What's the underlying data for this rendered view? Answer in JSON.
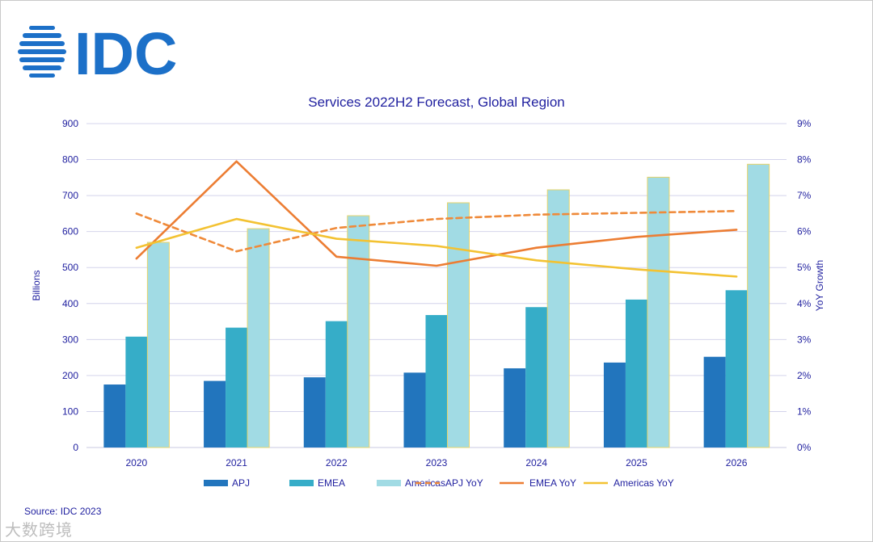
{
  "logo": {
    "text": "IDC",
    "color": "#1c70c8"
  },
  "source": "Source: IDC 2023",
  "watermark": "大数跨境",
  "chart_data": {
    "type": "bar",
    "title": "Services 2022H2 Forecast, Global Region",
    "ylabel": "Billions",
    "y2label": "YoY Growth",
    "ylim": [
      0,
      900
    ],
    "y2lim": [
      0,
      9
    ],
    "yticks": [
      "0",
      "100",
      "200",
      "300",
      "400",
      "500",
      "600",
      "700",
      "800",
      "900"
    ],
    "y2ticks": [
      "0%",
      "1%",
      "2%",
      "3%",
      "4%",
      "5%",
      "6%",
      "7%",
      "8%",
      "9%"
    ],
    "categories": [
      "2020",
      "2021",
      "2022",
      "2023",
      "2024",
      "2025",
      "2026"
    ],
    "series": [
      {
        "name": "APJ",
        "kind": "bar",
        "color": "#2275bd",
        "values": [
          175,
          185,
          195,
          208,
          220,
          236,
          252
        ]
      },
      {
        "name": "EMEA",
        "kind": "bar",
        "color": "#36adc8",
        "values": [
          308,
          333,
          351,
          368,
          390,
          411,
          437
        ]
      },
      {
        "name": "Americas",
        "kind": "bar",
        "color": "#a1dbe4",
        "values": [
          570,
          608,
          644,
          680,
          716,
          751,
          787
        ]
      },
      {
        "name": "APJ YoY",
        "kind": "line",
        "dash": true,
        "color": "#ef8a3a",
        "values": [
          6.5,
          5.45,
          6.1,
          6.35,
          6.47,
          6.52,
          6.57
        ]
      },
      {
        "name": "EMEA YoY",
        "kind": "line",
        "dash": false,
        "color": "#ec7d33",
        "values": [
          5.25,
          7.95,
          5.3,
          5.05,
          5.55,
          5.85,
          6.05
        ]
      },
      {
        "name": "Americas YoY",
        "kind": "line",
        "dash": false,
        "color": "#f3c232",
        "values": [
          5.55,
          6.35,
          5.8,
          5.6,
          5.2,
          4.95,
          4.75
        ]
      }
    ],
    "legend_position": "bottom"
  }
}
